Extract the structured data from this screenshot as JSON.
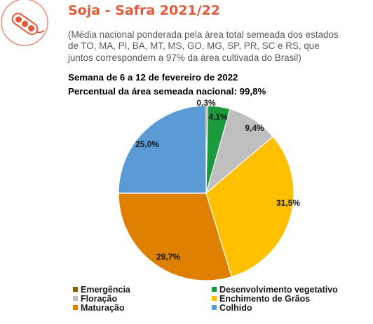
{
  "header": {
    "title": "Soja - Safra 2021/22",
    "subtitle_lines": [
      "(Média nacional ponderada pela área total semeada dos estados",
      "de TO, MA, PI, BA, MT, MS, GO, MG, SP, PR, SC e RS, que",
      "juntos correspondem a 97% da área cultivada do Brasil)"
    ],
    "week": "Semana de 6 a 12 de fevereiro de 2022",
    "area_sown": "Percentual da área semeada nacional: 99,8%"
  },
  "logo": {
    "icon": "soybean-pod-icon",
    "color": "#e05a3c"
  },
  "chart_data": {
    "type": "pie",
    "categories": [
      "Emergência",
      "Desenvolvimento vegetativo",
      "Floração",
      "Enchimento de Grãos",
      "Maturação",
      "Colhido"
    ],
    "values": [
      0.3,
      4.1,
      9.4,
      31.5,
      29.7,
      25.0
    ],
    "labels": [
      "0,3%",
      "4,1%",
      "9,4%",
      "31,5%",
      "29,7%",
      "25,0%"
    ],
    "colors": [
      "#806000",
      "#1a9a3c",
      "#bfbfbf",
      "#ffc000",
      "#dd8000",
      "#5b9bd5"
    ],
    "legend": "bottom"
  }
}
